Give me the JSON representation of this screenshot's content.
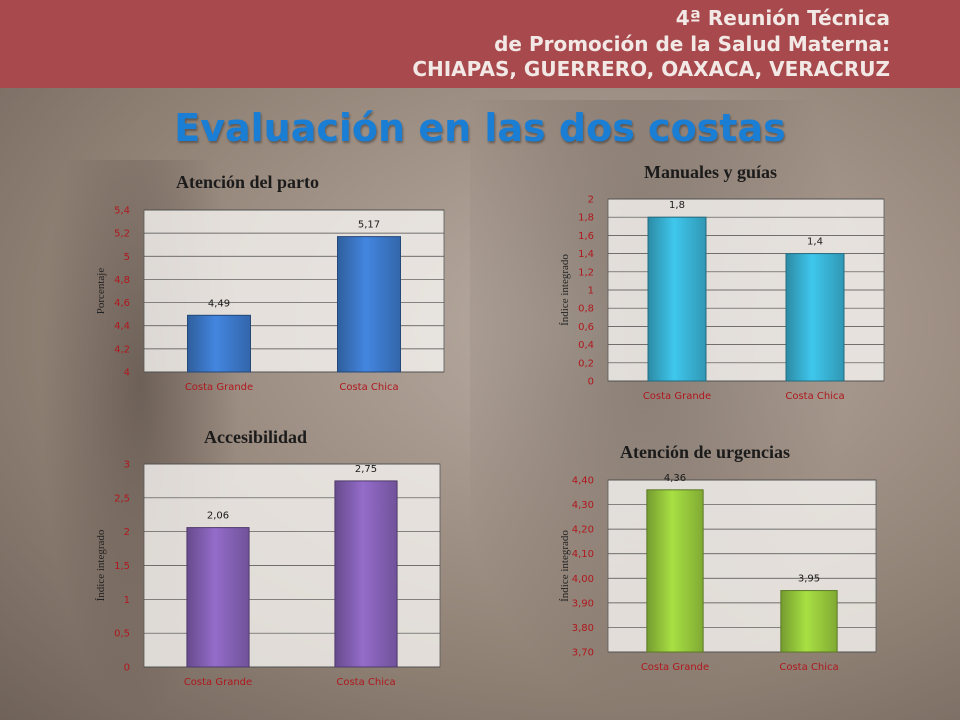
{
  "header": {
    "line1": "4ª Reunión Técnica",
    "line2": "de Promoción de la Salud Materna:",
    "line3": "CHIAPAS, GUERRERO, OAXACA, VERACRUZ"
  },
  "page_title": "Evaluación en  las dos costas",
  "colors": {
    "header_band": "#a84a4d",
    "title_blue": "#1a7fd4",
    "tick_red": "#b0171d"
  },
  "chart_data": [
    {
      "id": "parto",
      "type": "bar",
      "title": "Atención del parto",
      "ylabel": "Porcentaje",
      "categories": [
        "Costa Grande",
        "Costa Chica"
      ],
      "values": [
        4.49,
        5.17
      ],
      "value_labels": [
        "4,49",
        "5,17"
      ],
      "ylim": [
        4,
        5.4
      ],
      "yticks": [
        4,
        4.2,
        4.4,
        4.6,
        4.8,
        5,
        5.2,
        5.4
      ],
      "ytick_labels": [
        "4",
        "4,2",
        "4,4",
        "4,6",
        "4,8",
        "5",
        "5,2",
        "5,4"
      ],
      "color": "#3c78c8",
      "grid": true
    },
    {
      "id": "manuales",
      "type": "bar",
      "title": "Manuales y guías",
      "ylabel": "Índice integrado",
      "categories": [
        "Costa Grande",
        "Costa Chica"
      ],
      "values": [
        1.8,
        1.4
      ],
      "value_labels": [
        "1,8",
        "1,4"
      ],
      "ylim": [
        0,
        2
      ],
      "yticks": [
        0,
        0.2,
        0.4,
        0.6,
        0.8,
        1,
        1.2,
        1.4,
        1.6,
        1.8,
        2
      ],
      "ytick_labels": [
        "0",
        "0,2",
        "0,4",
        "0,6",
        "0,8",
        "1",
        "1,2",
        "1,4",
        "1,6",
        "1,8",
        "2"
      ],
      "color": "#38b2d4",
      "grid": true
    },
    {
      "id": "accesibilidad",
      "type": "bar",
      "title": "Accesibilidad",
      "ylabel": "Índice integrado",
      "categories": [
        "Costa Grande",
        "Costa Chica"
      ],
      "values": [
        2.06,
        2.75
      ],
      "value_labels": [
        "2,06",
        "2,75"
      ],
      "ylim": [
        0,
        3
      ],
      "yticks": [
        0,
        0.5,
        1,
        1.5,
        2,
        2.5,
        3
      ],
      "ytick_labels": [
        "0",
        "0,5",
        "1",
        "1,5",
        "2",
        "2,5",
        "3"
      ],
      "color": "#8460b4",
      "grid": true
    },
    {
      "id": "urgencias",
      "type": "bar",
      "title": "Atención de urgencias",
      "ylabel": "Índice integrado",
      "categories": [
        "Costa Grande",
        "Costa Chica"
      ],
      "values": [
        4.36,
        3.95
      ],
      "value_labels": [
        "4,36",
        "3,95"
      ],
      "ylim": [
        3.7,
        4.4
      ],
      "yticks": [
        3.7,
        3.8,
        3.9,
        4.0,
        4.1,
        4.2,
        4.3,
        4.4
      ],
      "ytick_labels": [
        "3,70",
        "3,80",
        "3,90",
        "4,00",
        "4,10",
        "4,20",
        "4,30",
        "4,40"
      ],
      "color": "#96c83c",
      "grid": true
    }
  ]
}
